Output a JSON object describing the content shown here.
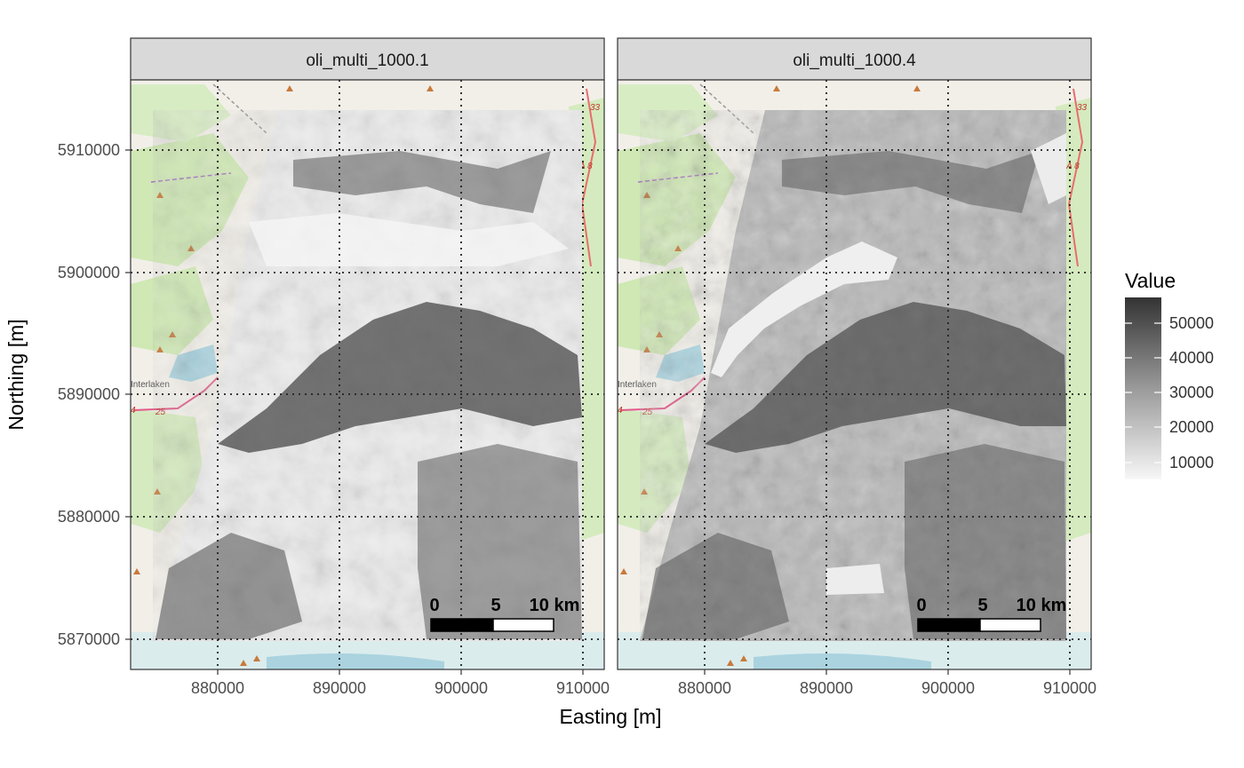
{
  "axes": {
    "xlabel": "Easting [m]",
    "ylabel": "Northing [m]",
    "xticks": [
      "880000",
      "890000",
      "900000",
      "910000"
    ],
    "yticks": [
      "5910000",
      "5900000",
      "5890000",
      "5880000",
      "5870000"
    ]
  },
  "panels": [
    {
      "title": "oli_multi_1000.1"
    },
    {
      "title": "oli_multi_1000.4"
    }
  ],
  "legend": {
    "title": "Value",
    "labels": [
      "50000",
      "40000",
      "30000",
      "20000",
      "10000"
    ]
  },
  "scalebar": {
    "labels": [
      "0",
      "5",
      "10 km"
    ]
  },
  "basemap": {
    "place_label": "Interlaken",
    "road_labels": [
      "33",
      "A 8",
      "25",
      "4"
    ]
  },
  "colors": {
    "strip_bg": "#d9d9d9",
    "panel_border": "#333333",
    "basemap_land": "#f2efe9",
    "basemap_forest": "#cfe8b4",
    "basemap_water": "#aad3df",
    "raster_low": "#f2f2f2",
    "raster_high": "#333333"
  }
}
